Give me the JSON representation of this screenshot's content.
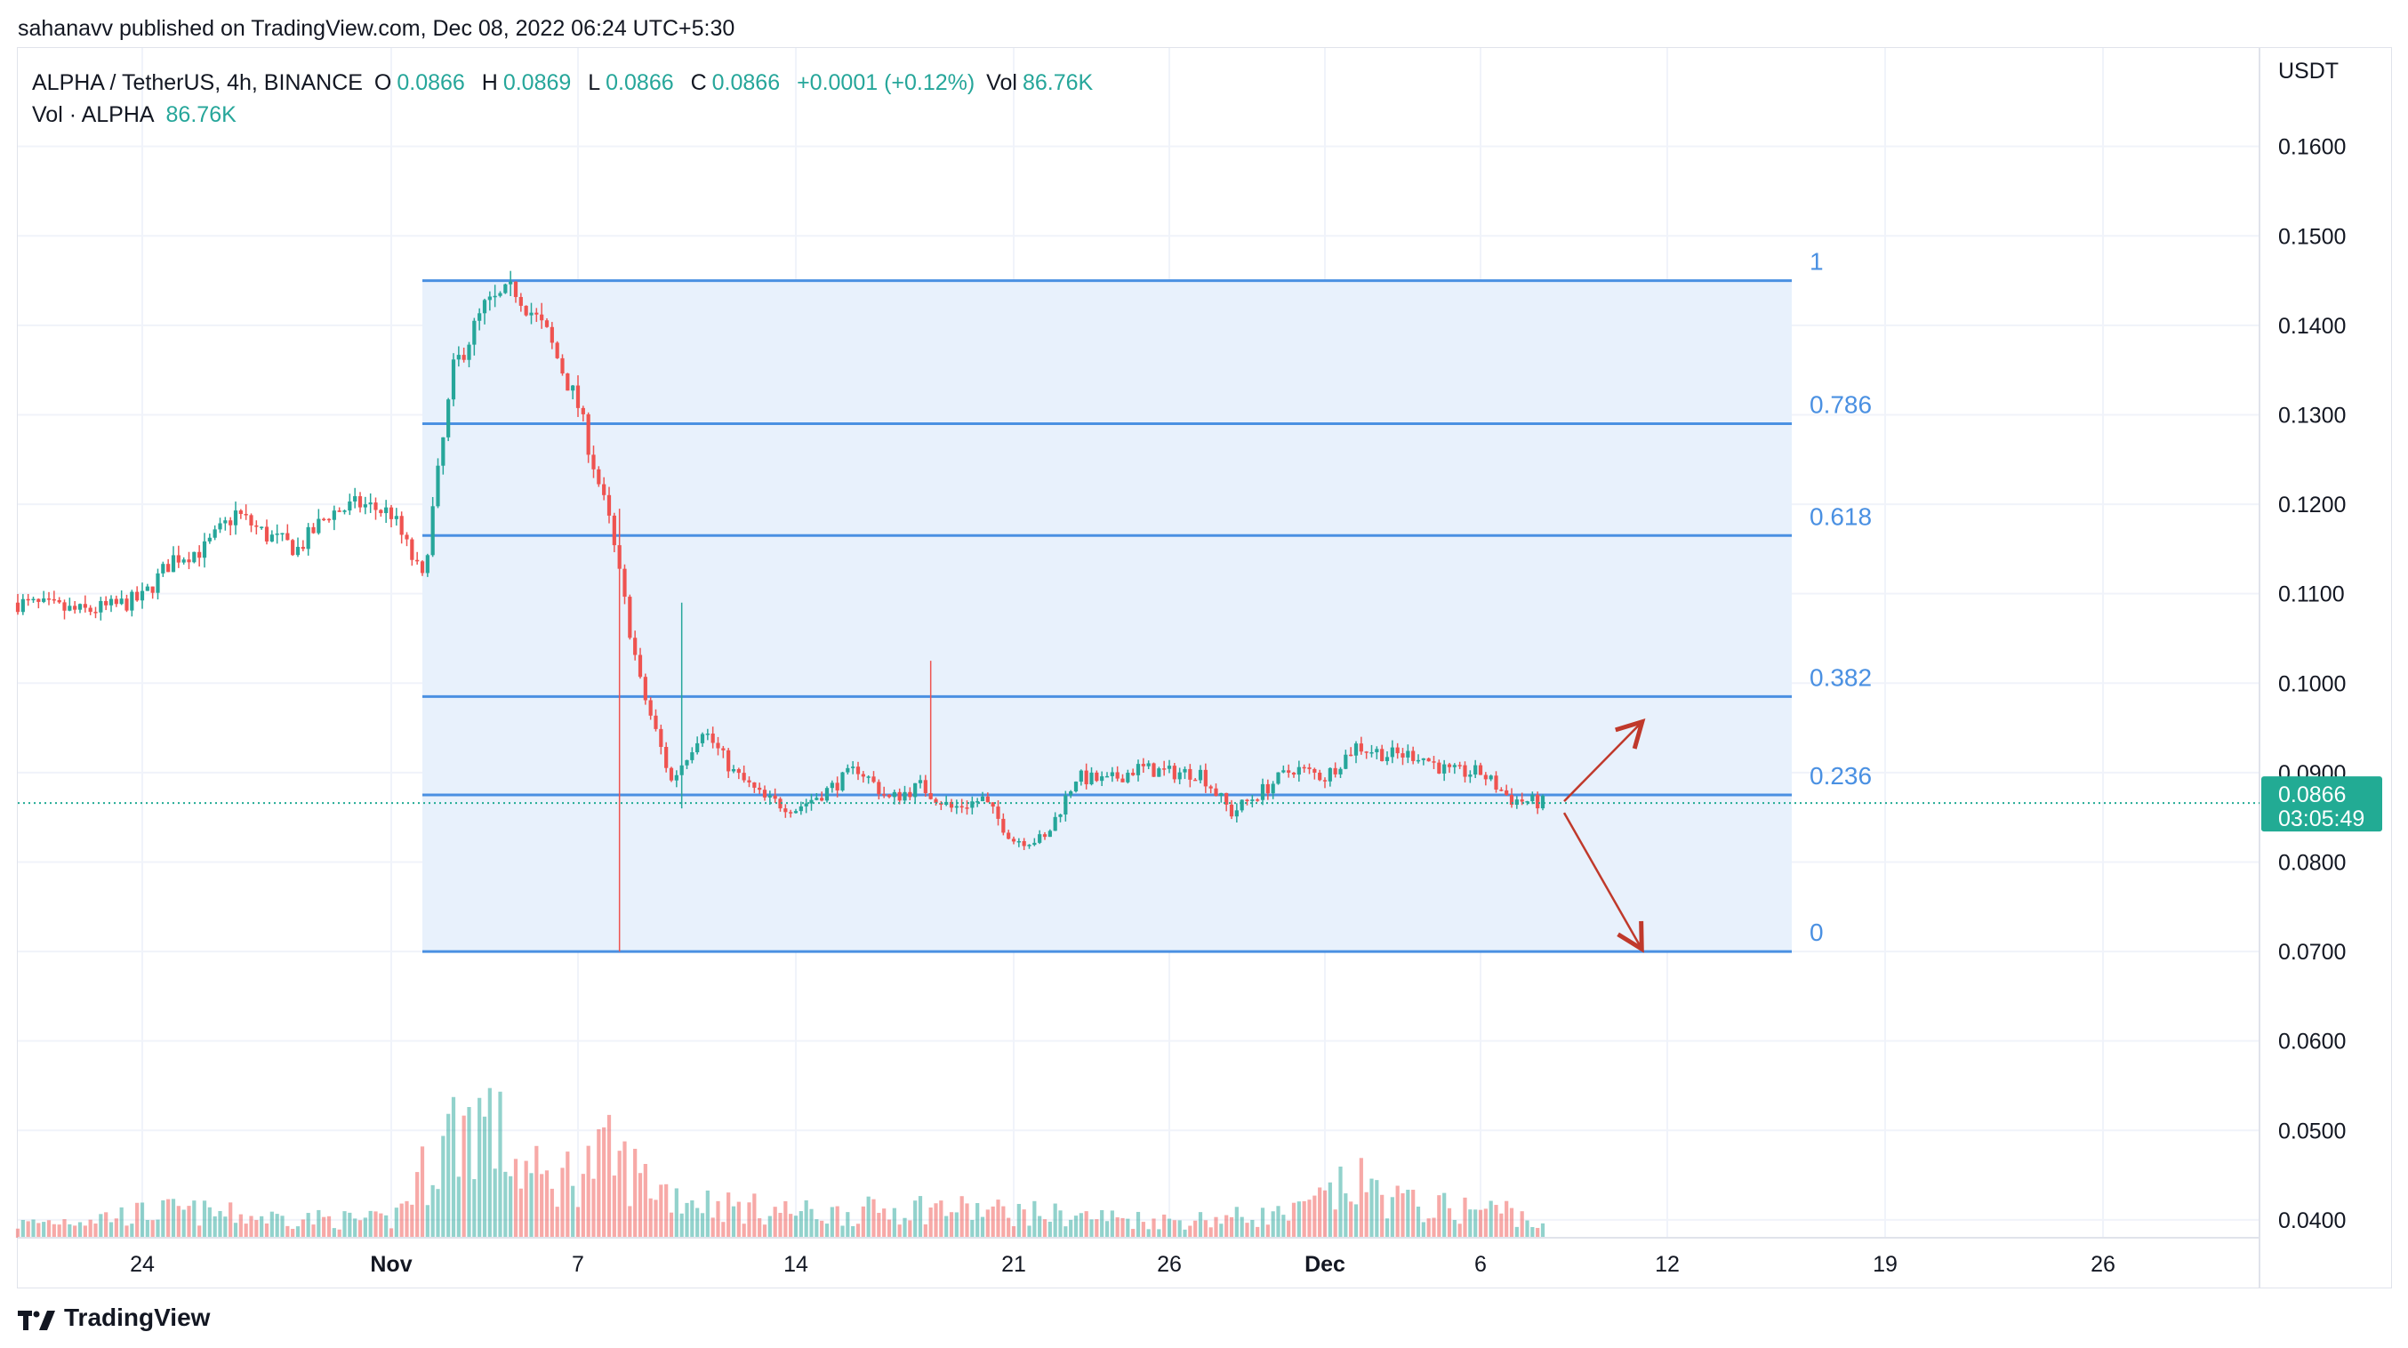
{
  "header": {
    "published": "sahanavv published on TradingView.com, Dec 08, 2022 06:24 UTC+5:30"
  },
  "legend": {
    "symbol": "ALPHA / TetherUS, 4h, BINANCE",
    "o_label": "O",
    "o_value": "0.0866",
    "h_label": "H",
    "h_value": "0.0869",
    "l_label": "L",
    "l_value": "0.0866",
    "c_label": "C",
    "c_value": "0.0866",
    "change": "+0.0001 (+0.12%)",
    "vol_label": "Vol",
    "vol_value": "86.76K",
    "vol_row_label": "Vol · ALPHA",
    "vol_row_value": "86.76K"
  },
  "brand": {
    "name": "TradingView"
  },
  "colors": {
    "up": "#26a69a",
    "down": "#ef5350",
    "fib": "#4a90e2",
    "fib_fill": "#e8f1fc",
    "price_tag": "#22ab94",
    "arrow": "#c0392b"
  },
  "chart_data": {
    "type": "candlestick",
    "symbol": "ALPHA / TetherUS",
    "interval": "4h",
    "exchange": "BINANCE",
    "y_axis_unit": "USDT",
    "ylim": [
      0.038,
      0.171
    ],
    "y_ticks": [
      "0.1600",
      "0.1500",
      "0.1400",
      "0.1300",
      "0.1200",
      "0.1100",
      "0.1000",
      "0.0900",
      "0.0800",
      "0.0700",
      "0.0600",
      "0.0500",
      "0.0400"
    ],
    "x_ticks": [
      {
        "label": "24",
        "date": "2022-10-24"
      },
      {
        "label": "Nov",
        "date": "2022-11-01"
      },
      {
        "label": "7",
        "date": "2022-11-07"
      },
      {
        "label": "14",
        "date": "2022-11-14"
      },
      {
        "label": "21",
        "date": "2022-11-21"
      },
      {
        "label": "26",
        "date": "2022-11-26"
      },
      {
        "label": "Dec",
        "date": "2022-12-01"
      },
      {
        "label": "6",
        "date": "2022-12-06"
      },
      {
        "label": "12",
        "date": "2022-12-12"
      },
      {
        "label": "19",
        "date": "2022-12-19"
      },
      {
        "label": "26",
        "date": "2022-12-26"
      }
    ],
    "x_range": [
      "2022-10-20",
      "2022-12-31"
    ],
    "last_price": "0.0866",
    "countdown": "03:05:49",
    "fibonacci": {
      "start_date": "2022-11-02",
      "end_date": "2022-12-16",
      "levels": [
        {
          "label": "1",
          "price": 0.145
        },
        {
          "label": "0.786",
          "price": 0.129
        },
        {
          "label": "0.618",
          "price": 0.1165
        },
        {
          "label": "0.382",
          "price": 0.0985
        },
        {
          "label": "0.236",
          "price": 0.0875
        },
        {
          "label": "0",
          "price": 0.07
        }
      ]
    },
    "projection_arrows": [
      {
        "direction": "up",
        "from": [
          "2022-12-08",
          0.0868
        ],
        "to": [
          "2022-12-10",
          0.0955
        ]
      },
      {
        "direction": "down",
        "from": [
          "2022-12-08",
          0.0855
        ],
        "to": [
          "2022-12-10",
          0.0705
        ]
      }
    ],
    "price_path": [
      [
        "2022-10-20",
        0.109
      ],
      [
        "2022-10-22",
        0.108
      ],
      [
        "2022-10-23",
        0.1085
      ],
      [
        "2022-10-24",
        0.1095
      ],
      [
        "2022-10-25",
        0.114
      ],
      [
        "2022-10-26",
        0.115
      ],
      [
        "2022-10-27",
        0.119
      ],
      [
        "2022-10-28",
        0.1165
      ],
      [
        "2022-10-29",
        0.115
      ],
      [
        "2022-10-30",
        0.119
      ],
      [
        "2022-10-31",
        0.12
      ],
      [
        "2022-11-01",
        0.119
      ],
      [
        "2022-11-02",
        0.1115
      ],
      [
        "2022-11-03",
        0.135
      ],
      [
        "2022-11-04",
        0.142
      ],
      [
        "2022-11-05",
        0.144
      ],
      [
        "2022-11-06",
        0.139
      ],
      [
        "2022-11-07",
        0.131
      ],
      [
        "2022-11-08",
        0.118
      ],
      [
        "2022-11-09",
        0.1
      ],
      [
        "2022-11-10",
        0.089
      ],
      [
        "2022-11-11",
        0.095
      ],
      [
        "2022-11-12",
        0.09
      ],
      [
        "2022-11-13",
        0.087
      ],
      [
        "2022-11-14",
        0.086
      ],
      [
        "2022-11-15",
        0.088
      ],
      [
        "2022-11-16",
        0.0905
      ],
      [
        "2022-11-17",
        0.087
      ],
      [
        "2022-11-18",
        0.0885
      ],
      [
        "2022-11-19",
        0.086
      ],
      [
        "2022-11-20",
        0.087
      ],
      [
        "2022-11-21",
        0.0825
      ],
      [
        "2022-11-22",
        0.0825
      ],
      [
        "2022-11-23",
        0.0895
      ],
      [
        "2022-11-24",
        0.089
      ],
      [
        "2022-11-25",
        0.0905
      ],
      [
        "2022-11-26",
        0.09
      ],
      [
        "2022-11-27",
        0.09
      ],
      [
        "2022-11-28",
        0.0855
      ],
      [
        "2022-11-29",
        0.088
      ],
      [
        "2022-11-30",
        0.0905
      ],
      [
        "2022-12-01",
        0.0895
      ],
      [
        "2022-12-02",
        0.093
      ],
      [
        "2022-12-03",
        0.092
      ],
      [
        "2022-12-04",
        0.092
      ],
      [
        "2022-12-05",
        0.09
      ],
      [
        "2022-12-06",
        0.09
      ],
      [
        "2022-12-07",
        0.087
      ],
      [
        "2022-12-08",
        0.0866
      ]
    ],
    "spikes": [
      {
        "date": "2022-11-08",
        "high": 0.1195,
        "low": 0.07
      },
      {
        "date": "2022-11-18",
        "high": 0.1025,
        "low": 0.0875
      },
      {
        "date": "2022-11-10",
        "high": 0.109,
        "low": 0.086
      }
    ],
    "volume_path": [
      [
        "2022-10-20",
        0.4
      ],
      [
        "2022-10-25",
        0.8
      ],
      [
        "2022-10-28",
        0.6
      ],
      [
        "2022-11-01",
        0.5
      ],
      [
        "2022-11-03",
        3.2
      ],
      [
        "2022-11-04",
        3.6
      ],
      [
        "2022-11-05",
        2.2
      ],
      [
        "2022-11-06",
        1.6
      ],
      [
        "2022-11-08",
        2.4
      ],
      [
        "2022-11-09",
        1.8
      ],
      [
        "2022-11-10",
        1.3
      ],
      [
        "2022-11-12",
        0.9
      ],
      [
        "2022-11-15",
        0.7
      ],
      [
        "2022-11-18",
        0.9
      ],
      [
        "2022-11-22",
        0.7
      ],
      [
        "2022-11-26",
        0.5
      ],
      [
        "2022-11-30",
        0.7
      ],
      [
        "2022-12-02",
        1.6
      ],
      [
        "2022-12-04",
        0.9
      ],
      [
        "2022-12-07",
        0.8
      ],
      [
        "2022-12-08",
        0.3
      ]
    ]
  }
}
